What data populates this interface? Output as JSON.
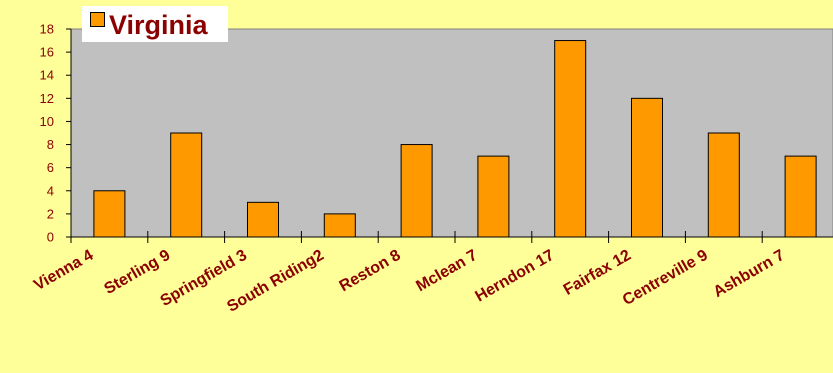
{
  "chart_data": {
    "type": "bar",
    "categories": [
      "Vienna 4",
      "Sterling 9",
      "Springfield 3",
      "South Riding2",
      "Reston 8",
      "Mclean 7",
      "Herndon 17",
      "Fairfax 12",
      "Centreville 9",
      "Ashburn 7"
    ],
    "series": [
      {
        "name": "Virginia",
        "values": [
          4,
          9,
          3,
          2,
          8,
          7,
          17,
          12,
          9,
          7
        ]
      }
    ],
    "ylim": [
      0,
      18
    ],
    "yticks": [
      "0",
      "2",
      "4",
      "6",
      "8",
      "10",
      "12",
      "14",
      "16",
      "18"
    ],
    "xlabel": "",
    "ylabel": "",
    "grid": false,
    "legend_position": "top-left"
  },
  "colors": {
    "background": "#FFFF99",
    "plot_area": "#C0C0C0",
    "bar": "#FF9900",
    "text": "#8B0000",
    "axis": "#000000"
  }
}
